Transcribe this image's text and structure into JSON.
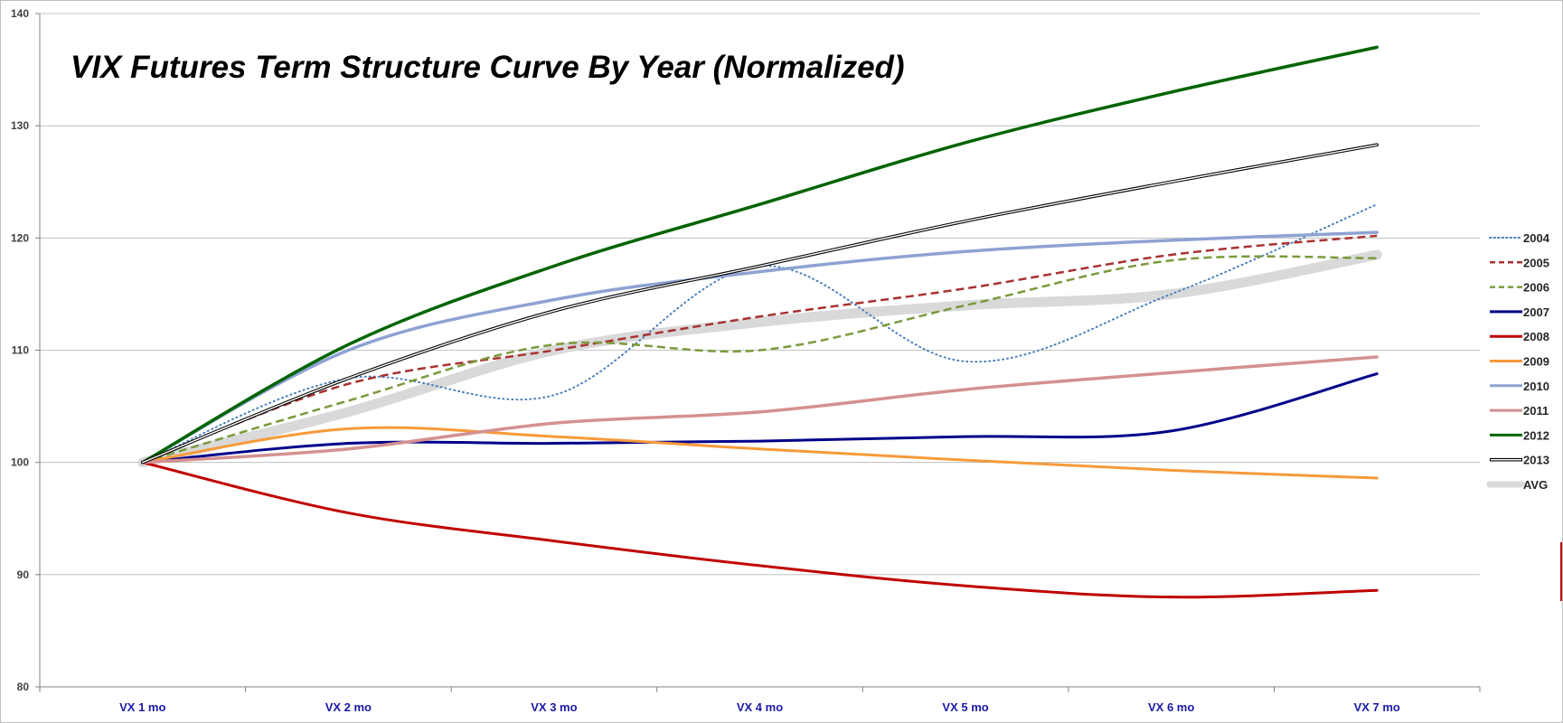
{
  "chart_data": {
    "type": "line",
    "title": "VIX Futures Term Structure Curve By Year (Normalized)",
    "xlabel": "",
    "ylabel": "",
    "categories": [
      "VX 1 mo",
      "VX 2 mo",
      "VX 3 mo",
      "VX 4 mo",
      "VX 5 mo",
      "VX 6 mo",
      "VX 7 mo"
    ],
    "ylim": [
      80,
      140
    ],
    "yticks": [
      80,
      90,
      100,
      110,
      120,
      130,
      140
    ],
    "grid": true,
    "legend_position": "right",
    "series": [
      {
        "name": "2004",
        "values": [
          100,
          107.5,
          106,
          117.5,
          109,
          115,
          123
        ],
        "color": "#4a7ebb",
        "style": "dotted",
        "width": 2
      },
      {
        "name": "2005",
        "values": [
          100,
          107,
          110,
          113,
          115.5,
          118.5,
          120.2
        ],
        "color": "#a83232",
        "style": "dashed",
        "width": 2.5
      },
      {
        "name": "2006",
        "values": [
          100,
          105.5,
          110.5,
          110,
          114,
          118,
          118.2
        ],
        "color": "#7a9a3c",
        "style": "dashed",
        "width": 2.5
      },
      {
        "name": "2007",
        "values": [
          100,
          101.7,
          101.7,
          101.9,
          102.3,
          102.8,
          107.9
        ],
        "color": "#00008b",
        "style": "solid",
        "width": 3
      },
      {
        "name": "2008",
        "values": [
          100,
          95.5,
          93,
          90.8,
          89,
          88,
          88.6
        ],
        "color": "#c00000",
        "style": "solid",
        "width": 3
      },
      {
        "name": "2009",
        "values": [
          100,
          103,
          102.3,
          101.2,
          100.2,
          99.3,
          98.6
        ],
        "color": "#f79a3a",
        "style": "solid",
        "width": 3
      },
      {
        "name": "2010",
        "values": [
          100,
          110,
          114.5,
          117,
          118.8,
          119.8,
          120.5
        ],
        "color": "#8ea2d2",
        "style": "solid",
        "width": 3.5
      },
      {
        "name": "2011",
        "values": [
          100,
          101.2,
          103.5,
          104.5,
          106.5,
          108,
          109.4
        ],
        "color": "#d49090",
        "style": "solid",
        "width": 3.5
      },
      {
        "name": "2012",
        "values": [
          100,
          110.5,
          117.5,
          123,
          128.5,
          133,
          137
        ],
        "color": "#006400",
        "style": "solid",
        "width": 3.5
      },
      {
        "name": "2013",
        "values": [
          100,
          107.5,
          113.5,
          117.5,
          121.5,
          125,
          128.3
        ],
        "color": "#000000",
        "style": "double",
        "width": 1.2
      },
      {
        "name": "AVG",
        "values": [
          100,
          104.5,
          110,
          112.5,
          114,
          115,
          118.5
        ],
        "color": "#d9d9d9",
        "style": "thick",
        "width": 11
      }
    ]
  }
}
